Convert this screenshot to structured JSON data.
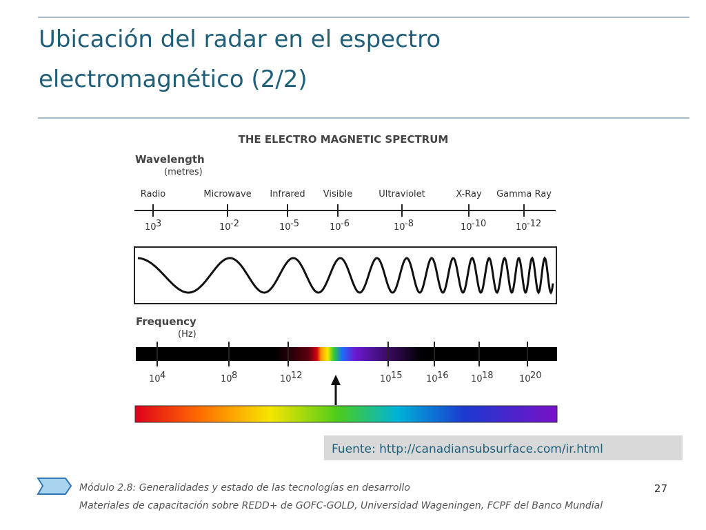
{
  "slide": {
    "title": "Ubicación del radar en el espectro electromagnético (2/2)",
    "diagram": {
      "title": "THE ELECTRO MAGNETIC SPECTRUM",
      "wavelength_label": "Wavelength",
      "wavelength_unit": "(metres)",
      "bands": [
        {
          "name": "Radio",
          "base": "10",
          "exp": "3"
        },
        {
          "name": "Microwave",
          "base": "10",
          "exp": "-2"
        },
        {
          "name": "Infrared",
          "base": "10",
          "exp": "-5"
        },
        {
          "name": "Visible",
          "base": "10",
          "exp": "-6"
        },
        {
          "name": "Ultraviolet",
          "base": "10",
          "exp": "-8"
        },
        {
          "name": "X-Ray",
          "base": "10",
          "exp": "-10"
        },
        {
          "name": "Gamma Ray",
          "base": "10",
          "exp": "-12"
        }
      ],
      "frequency_label": "Frequency",
      "frequency_unit": "(Hz)",
      "frequencies": [
        {
          "base": "10",
          "exp": "4"
        },
        {
          "base": "10",
          "exp": "8"
        },
        {
          "base": "10",
          "exp": "12"
        },
        {
          "base": "10",
          "exp": "15"
        },
        {
          "base": "10",
          "exp": "16"
        },
        {
          "base": "10",
          "exp": "18"
        },
        {
          "base": "10",
          "exp": "20"
        }
      ]
    },
    "source": "Fuente: http://canadiansubsurface.com/ir.html",
    "footer": {
      "module": "Módulo 2.8: Generalidades y estado de las tecnologías en desarrollo",
      "credits": "Materiales de capacitación sobre REDD+ de GOFC-GOLD, Universidad Wageningen, FCPF del Banco Mundial",
      "page": "27"
    }
  }
}
